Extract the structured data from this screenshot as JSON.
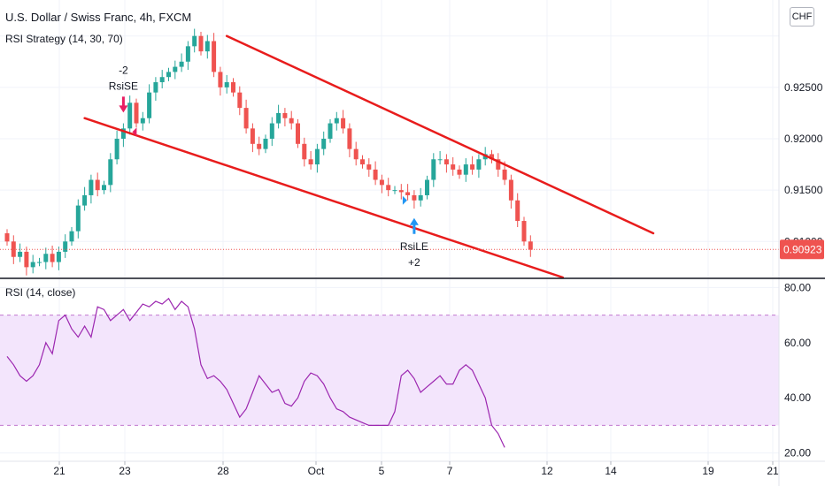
{
  "header": {
    "symbol_title": "U.S. Dollar / Swiss Franc, 4h, FXCM",
    "strategy_label": "RSI Strategy (14, 30, 70)",
    "currency_button": "CHF"
  },
  "colors": {
    "up": "#26a69a",
    "down": "#ef5350",
    "channel": "#e81c1c",
    "rsi_line": "#9c27b0",
    "rsi_band": "#f3e5fc",
    "price_label": "#ef5350",
    "long_arrow": "#2196f3",
    "short_arrow": "#e91e63"
  },
  "chart_data": [
    {
      "type": "candlestick",
      "title": "U.S. Dollar / Swiss Franc, 4h, FXCM",
      "x_ticks": [
        "21",
        "23",
        "28",
        "Oct",
        "5",
        "7",
        "12",
        "14",
        "19",
        "21"
      ],
      "y_ticks": [
        "0.92500",
        "0.92000",
        "0.91500",
        "0.91000"
      ],
      "ylim": [
        0.9065,
        0.9335
      ],
      "last_price": "0.90923",
      "trendlines": [
        {
          "name": "upper-channel",
          "points": [
            [
              34,
              0.93
            ],
            [
              100,
              0.9108
            ]
          ]
        },
        {
          "name": "lower-channel",
          "points": [
            [
              12,
              0.922
            ],
            [
              86,
              0.9065
            ]
          ]
        }
      ],
      "signals": [
        {
          "text": "-2",
          "sub": "RsiSE",
          "index": 18,
          "side": "short"
        },
        {
          "text": "RsiLE",
          "sub": "+2",
          "index": 63,
          "side": "long"
        }
      ],
      "closes": [
        0.91,
        0.9085,
        0.909,
        0.9075,
        0.908,
        0.908,
        0.9088,
        0.908,
        0.909,
        0.91,
        0.911,
        0.9135,
        0.9145,
        0.916,
        0.915,
        0.9155,
        0.918,
        0.92,
        0.921,
        0.9235,
        0.9215,
        0.922,
        0.9245,
        0.9255,
        0.926,
        0.9265,
        0.927,
        0.9275,
        0.929,
        0.93,
        0.9285,
        0.9295,
        0.9265,
        0.925,
        0.9255,
        0.9245,
        0.923,
        0.921,
        0.9195,
        0.919,
        0.92,
        0.9215,
        0.9225,
        0.922,
        0.9215,
        0.9195,
        0.918,
        0.9175,
        0.919,
        0.92,
        0.9215,
        0.922,
        0.921,
        0.919,
        0.918,
        0.9175,
        0.917,
        0.916,
        0.9155,
        0.915,
        0.915,
        0.9148,
        0.9145,
        0.914,
        0.9145,
        0.916,
        0.918,
        0.918,
        0.9175,
        0.917,
        0.9165,
        0.9175,
        0.917,
        0.918,
        0.9185,
        0.918,
        0.917,
        0.916,
        0.914,
        0.912,
        0.91,
        0.9092
      ],
      "rsi": {
        "title": "RSI (14, close)",
        "ylim": [
          17,
          83
        ],
        "y_ticks": [
          "80.00",
          "60.00",
          "40.00",
          "20.00"
        ],
        "band": [
          30,
          70
        ],
        "values": [
          55,
          52,
          48,
          46,
          48,
          52,
          60,
          56,
          68,
          70,
          65,
          62,
          66,
          62,
          73,
          72,
          68,
          70,
          72,
          68,
          71,
          74,
          73,
          75,
          74,
          76,
          72,
          75,
          73,
          65,
          52,
          47,
          48,
          46,
          43,
          38,
          33,
          36,
          42,
          48,
          45,
          42,
          43,
          38,
          37,
          40,
          46,
          49,
          48,
          45,
          40,
          36,
          35,
          33,
          32,
          31,
          30,
          30,
          30,
          30,
          35,
          48,
          50,
          47,
          42,
          44,
          46,
          48,
          45,
          45,
          50,
          52,
          50,
          45,
          40,
          30,
          27,
          22
        ]
      }
    }
  ]
}
